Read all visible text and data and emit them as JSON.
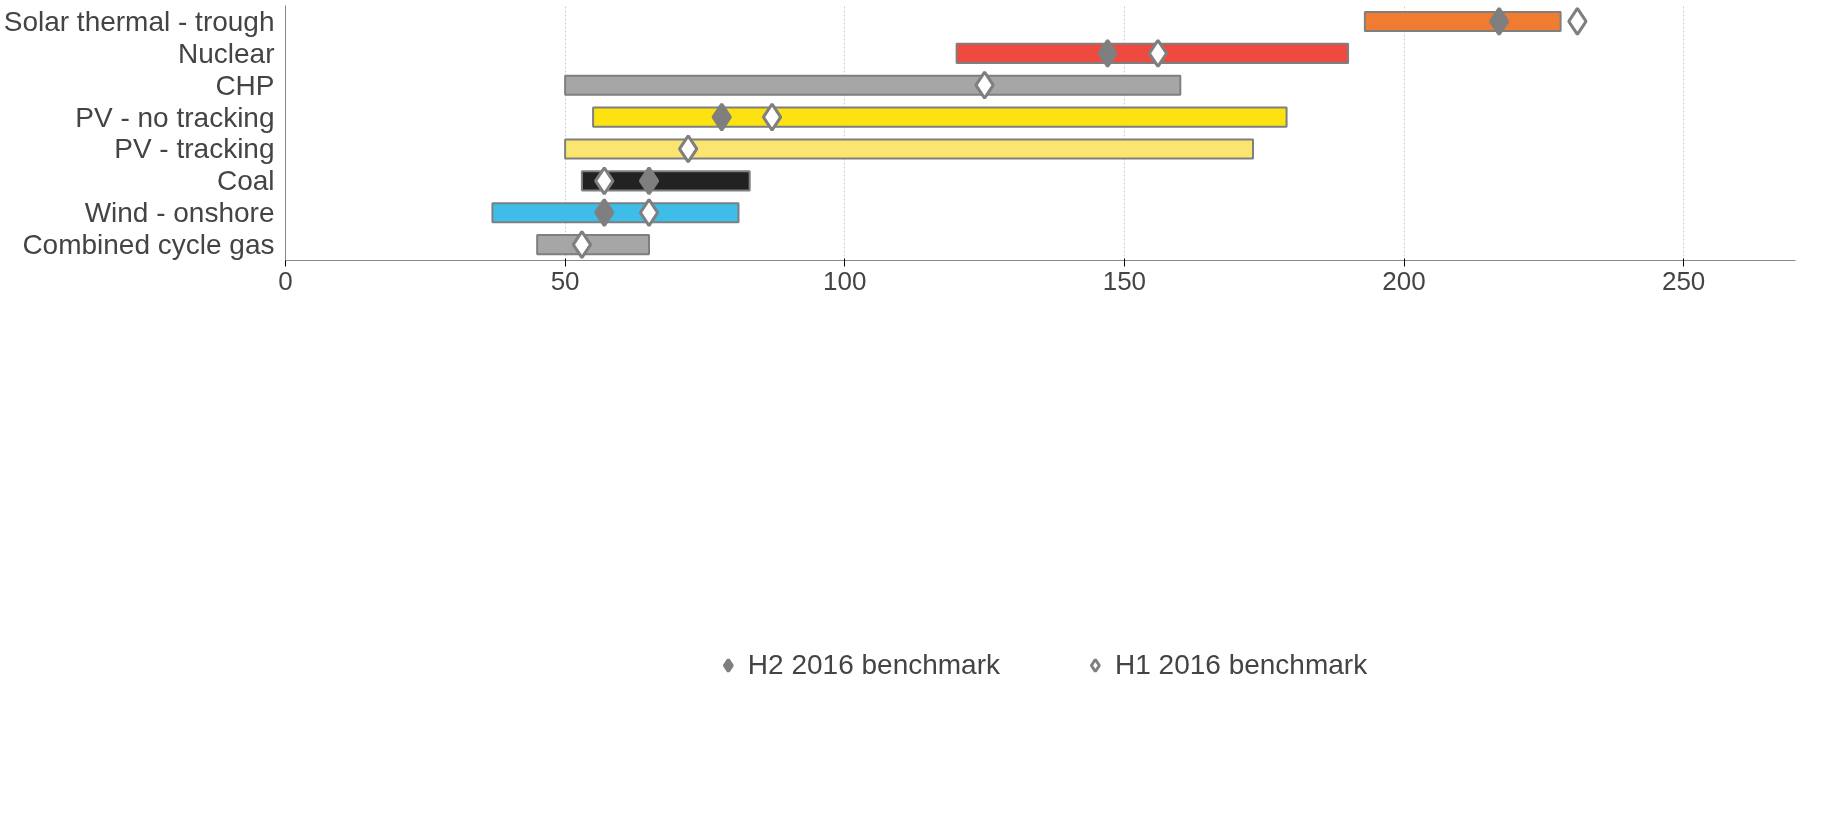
{
  "chart_data": {
    "type": "bar",
    "orientation": "horizontal",
    "categories": [
      "Solar thermal - trough",
      "Nuclear",
      "CHP",
      "PV - no tracking",
      "PV - tracking",
      "Coal",
      "Wind - onshore",
      "Combined cycle gas"
    ],
    "series": [
      {
        "values": [
          35,
          70,
          110,
          124,
          123,
          30,
          44,
          20
        ],
        "base": [
          193,
          120,
          50,
          55,
          50,
          53,
          37,
          45
        ],
        "colors": [
          "#f07c32",
          "#ee4a40",
          "#a6a6a6",
          "#fce211",
          "#fbe571",
          "#222222",
          "#3dbde8",
          "#a6a6a6"
        ]
      },
      {
        "type": "scatter",
        "name": "H2 2016 benchmark",
        "color": "#7f7f7f",
        "marker": "diamond",
        "values": [
          217,
          147,
          null,
          78,
          null,
          65,
          57,
          null
        ]
      },
      {
        "type": "scatter",
        "name": "H1 2016 benchmark",
        "color": "#ffffff",
        "marker": "diamond",
        "values": [
          231,
          156,
          125,
          87,
          72,
          57,
          65,
          53
        ]
      }
    ],
    "xlim": [
      0,
      270
    ],
    "xticks": [
      0,
      50,
      100,
      150,
      200,
      250
    ],
    "grid": "x",
    "legend": "bottom"
  }
}
